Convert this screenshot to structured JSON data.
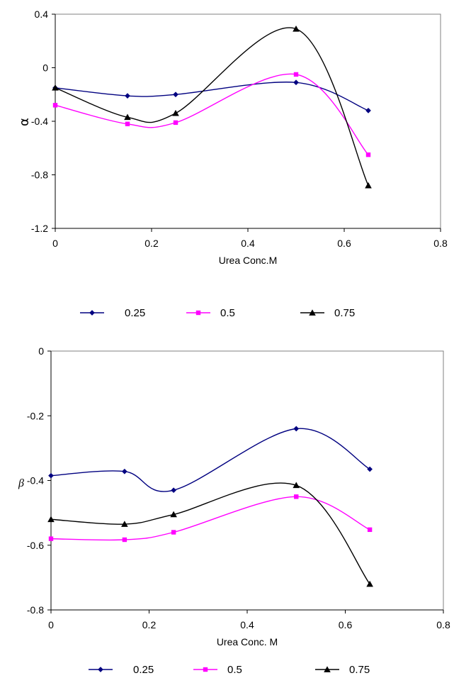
{
  "chart_data": [
    {
      "type": "line",
      "title": "",
      "xlabel": "Urea Conc.M",
      "ylabel": "α",
      "xlim": [
        0,
        0.8
      ],
      "ylim": [
        -1.2,
        0.4
      ],
      "x_ticks": [
        "0",
        "0.2",
        "0.4",
        "0.6",
        "0.8"
      ],
      "y_ticks": [
        "0.4",
        "0",
        "-0.4",
        "-0.8",
        "-1.2"
      ],
      "grid": false,
      "legend_position": "bottom",
      "series": [
        {
          "name": "0.25",
          "color": "#000080",
          "marker": "diamond",
          "x": [
            0,
            0.15,
            0.25,
            0.5,
            0.65
          ],
          "y": [
            -0.15,
            -0.21,
            -0.2,
            -0.11,
            -0.32
          ]
        },
        {
          "name": "0.5",
          "color": "#ff00ff",
          "marker": "square",
          "x": [
            0,
            0.15,
            0.25,
            0.5,
            0.65
          ],
          "y": [
            -0.28,
            -0.42,
            -0.41,
            -0.05,
            -0.65
          ]
        },
        {
          "name": "0.75",
          "color": "#000000",
          "marker": "triangle",
          "x": [
            0,
            0.15,
            0.25,
            0.5,
            0.65
          ],
          "y": [
            -0.15,
            -0.37,
            -0.34,
            0.29,
            -0.88
          ]
        }
      ]
    },
    {
      "type": "line",
      "title": "",
      "xlabel": "Urea Conc. M",
      "ylabel": "β",
      "xlim": [
        0,
        0.8
      ],
      "ylim": [
        -0.8,
        0
      ],
      "x_ticks": [
        "0",
        "0.2",
        "0.4",
        "0.6",
        "0.8"
      ],
      "y_ticks": [
        "0",
        "-0.2",
        "-0.4",
        "-0.6",
        "-0.8"
      ],
      "grid": false,
      "legend_position": "bottom",
      "series": [
        {
          "name": "0.25",
          "color": "#000080",
          "marker": "diamond",
          "x": [
            0,
            0.15,
            0.25,
            0.5,
            0.65
          ],
          "y": [
            -0.385,
            -0.372,
            -0.43,
            -0.24,
            -0.365
          ]
        },
        {
          "name": "0.5",
          "color": "#ff00ff",
          "marker": "square",
          "x": [
            0,
            0.15,
            0.25,
            0.5,
            0.65
          ],
          "y": [
            -0.58,
            -0.583,
            -0.56,
            -0.45,
            -0.552
          ]
        },
        {
          "name": "0.75",
          "color": "#000000",
          "marker": "triangle",
          "x": [
            0,
            0.15,
            0.25,
            0.5,
            0.65
          ],
          "y": [
            -0.52,
            -0.535,
            -0.505,
            -0.415,
            -0.72
          ]
        }
      ]
    }
  ]
}
